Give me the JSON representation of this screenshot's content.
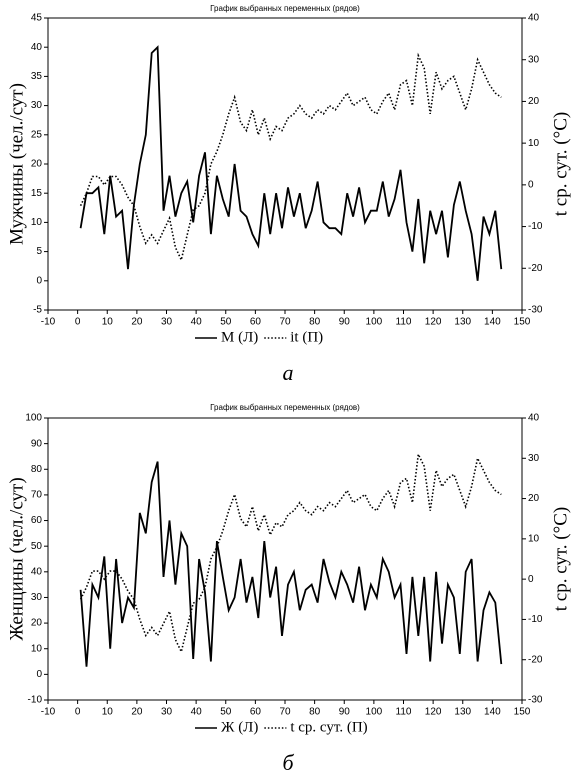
{
  "chart_data": [
    {
      "type": "line",
      "title": "График выбранных переменных (рядов)",
      "caption": "а",
      "y_label": "Мужчины (чел./сут)",
      "y2_label": "t ср. сут. (°C)",
      "xlim": [
        -10,
        150
      ],
      "xticks": [
        -10,
        0,
        10,
        20,
        30,
        40,
        50,
        60,
        70,
        80,
        90,
        100,
        110,
        120,
        130,
        140,
        150
      ],
      "ylim": [
        -5,
        45
      ],
      "yticks": [
        -5,
        0,
        5,
        10,
        15,
        20,
        25,
        30,
        35,
        40,
        45
      ],
      "y2lim": [
        -30,
        40
      ],
      "y2ticks": [
        -30,
        -20,
        -10,
        0,
        10,
        20,
        30,
        40
      ],
      "x": [
        1,
        3,
        5,
        7,
        9,
        11,
        13,
        15,
        17,
        19,
        21,
        23,
        25,
        27,
        29,
        31,
        33,
        35,
        37,
        39,
        41,
        43,
        45,
        47,
        49,
        51,
        53,
        55,
        57,
        59,
        61,
        63,
        65,
        67,
        69,
        71,
        73,
        75,
        77,
        79,
        81,
        83,
        85,
        87,
        89,
        91,
        93,
        95,
        97,
        99,
        101,
        103,
        105,
        107,
        109,
        111,
        113,
        115,
        117,
        119,
        121,
        123,
        125,
        127,
        129,
        131,
        133,
        135,
        137,
        139,
        141,
        143
      ],
      "series": [
        {
          "name": "М (Л)",
          "color": "#000000",
          "style": "solid",
          "values": [
            9,
            15,
            15,
            16,
            8,
            18,
            11,
            12,
            2,
            13,
            20,
            25,
            39,
            40,
            12,
            18,
            11,
            15,
            17,
            10,
            18,
            22,
            8,
            18,
            14,
            11,
            20,
            12,
            11,
            8,
            6,
            15,
            8,
            15,
            9,
            16,
            11,
            15,
            9,
            12,
            17,
            10,
            9,
            9,
            8,
            15,
            11,
            16,
            10,
            12,
            12,
            17,
            11,
            14,
            19,
            10,
            5,
            14,
            3,
            12,
            8,
            12,
            4,
            13,
            17,
            12,
            8,
            0,
            11,
            8,
            12,
            2
          ]
        },
        {
          "name": "it (П)",
          "color": "#000000",
          "style": "dotted",
          "axis": "y2",
          "values": [
            -5,
            -2,
            2,
            2,
            0,
            2,
            2,
            0,
            -3,
            -5,
            -10,
            -14,
            -12,
            -14,
            -11,
            -8,
            -15,
            -18,
            -12,
            -6,
            -5,
            -2,
            5,
            8,
            12,
            17,
            21,
            15,
            13,
            18,
            12,
            16,
            11,
            14,
            13,
            16,
            17,
            19,
            17,
            16,
            18,
            17,
            19,
            18,
            20,
            22,
            19,
            20,
            21,
            18,
            17,
            20,
            22,
            18,
            24,
            25,
            19,
            31,
            28,
            17,
            27,
            23,
            25,
            26,
            22,
            18,
            23,
            30,
            27,
            24,
            22,
            21
          ]
        }
      ]
    },
    {
      "type": "line",
      "title": "График выбранных переменных (рядов)",
      "caption": "б",
      "y_label": "Женщины (чел./сут)",
      "y2_label": "t ср. сут. (°C)",
      "xlim": [
        -10,
        150
      ],
      "xticks": [
        -10,
        0,
        10,
        20,
        30,
        40,
        50,
        60,
        70,
        80,
        90,
        100,
        110,
        120,
        130,
        140,
        150
      ],
      "ylim": [
        -10,
        100
      ],
      "yticks": [
        -10,
        0,
        10,
        20,
        30,
        40,
        50,
        60,
        70,
        80,
        90,
        100
      ],
      "y2lim": [
        -30,
        40
      ],
      "y2ticks": [
        -30,
        -20,
        -10,
        0,
        10,
        20,
        30,
        40
      ],
      "x": [
        1,
        3,
        5,
        7,
        9,
        11,
        13,
        15,
        17,
        19,
        21,
        23,
        25,
        27,
        29,
        31,
        33,
        35,
        37,
        39,
        41,
        43,
        45,
        47,
        49,
        51,
        53,
        55,
        57,
        59,
        61,
        63,
        65,
        67,
        69,
        71,
        73,
        75,
        77,
        79,
        81,
        83,
        85,
        87,
        89,
        91,
        93,
        95,
        97,
        99,
        101,
        103,
        105,
        107,
        109,
        111,
        113,
        115,
        117,
        119,
        121,
        123,
        125,
        127,
        129,
        131,
        133,
        135,
        137,
        139,
        141,
        143
      ],
      "series": [
        {
          "name": "Ж (Л)",
          "color": "#000000",
          "style": "solid",
          "values": [
            33,
            3,
            35,
            30,
            46,
            10,
            45,
            20,
            30,
            26,
            63,
            55,
            75,
            83,
            38,
            60,
            35,
            55,
            50,
            6,
            45,
            32,
            5,
            52,
            38,
            25,
            30,
            45,
            28,
            38,
            22,
            52,
            30,
            42,
            15,
            35,
            40,
            25,
            33,
            35,
            28,
            45,
            36,
            30,
            40,
            35,
            28,
            42,
            25,
            35,
            30,
            45,
            40,
            30,
            35,
            8,
            38,
            15,
            38,
            5,
            40,
            12,
            35,
            30,
            8,
            40,
            45,
            5,
            25,
            32,
            28,
            4
          ]
        },
        {
          "name": "t ср. сут. (П)",
          "color": "#000000",
          "style": "dotted",
          "axis": "y2",
          "values": [
            -5,
            -2,
            2,
            2,
            0,
            2,
            2,
            0,
            -3,
            -5,
            -10,
            -14,
            -12,
            -14,
            -11,
            -8,
            -15,
            -18,
            -12,
            -6,
            -5,
            -2,
            5,
            8,
            12,
            17,
            21,
            15,
            13,
            18,
            12,
            16,
            11,
            14,
            13,
            16,
            17,
            19,
            17,
            16,
            18,
            17,
            19,
            18,
            20,
            22,
            19,
            20,
            21,
            18,
            17,
            20,
            22,
            18,
            24,
            25,
            19,
            31,
            28,
            17,
            27,
            23,
            25,
            26,
            22,
            18,
            23,
            30,
            27,
            24,
            22,
            21
          ]
        }
      ]
    }
  ]
}
